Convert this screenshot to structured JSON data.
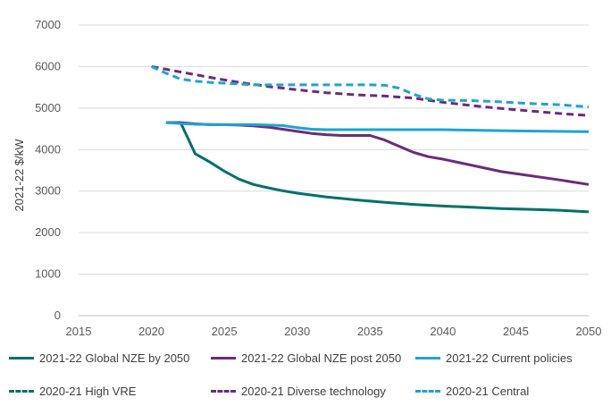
{
  "chart_data": {
    "type": "line",
    "title": "",
    "xlabel": "",
    "ylabel": "2021-22 $/kW",
    "xlim": [
      2015,
      2050
    ],
    "ylim": [
      0,
      7000
    ],
    "x_ticks": [
      2015,
      2020,
      2025,
      2030,
      2035,
      2040,
      2045,
      2050
    ],
    "y_ticks": [
      0,
      1000,
      2000,
      3000,
      4000,
      5000,
      6000,
      7000
    ],
    "grid": "horizontal",
    "legend_position": "bottom",
    "series": [
      {
        "name": "2021-22 Global NZE by 2050",
        "color": "#00706B",
        "style": "solid",
        "x": [
          2021,
          2022,
          2023,
          2024,
          2025,
          2026,
          2027,
          2028,
          2029,
          2030,
          2032,
          2034,
          2036,
          2038,
          2040,
          2042,
          2044,
          2046,
          2048,
          2050
        ],
        "y": [
          4650,
          4650,
          3900,
          3700,
          3480,
          3290,
          3160,
          3080,
          3010,
          2950,
          2860,
          2790,
          2730,
          2680,
          2640,
          2610,
          2580,
          2560,
          2540,
          2500
        ]
      },
      {
        "name": "2021-22 Global NZE post 2050",
        "color": "#6B2C7A",
        "style": "solid",
        "x": [
          2021,
          2022,
          2023,
          2024,
          2025,
          2026,
          2027,
          2028,
          2029,
          2030,
          2031,
          2032,
          2033,
          2034,
          2035,
          2036,
          2037,
          2038,
          2039,
          2040,
          2042,
          2044,
          2046,
          2048,
          2050
        ],
        "y": [
          4650,
          4650,
          4620,
          4600,
          4600,
          4590,
          4570,
          4540,
          4490,
          4440,
          4390,
          4360,
          4340,
          4340,
          4340,
          4230,
          4080,
          3930,
          3830,
          3770,
          3620,
          3470,
          3370,
          3270,
          3160
        ]
      },
      {
        "name": "2021-22 Current policies",
        "color": "#1FA3D1",
        "style": "solid",
        "x": [
          2021,
          2023,
          2025,
          2027,
          2029,
          2030,
          2031,
          2032,
          2035,
          2040,
          2045,
          2050
        ],
        "y": [
          4650,
          4610,
          4600,
          4600,
          4580,
          4530,
          4490,
          4480,
          4480,
          4480,
          4450,
          4430
        ]
      },
      {
        "name": "2020-21 High VRE",
        "color": "#00706B",
        "style": "dashed",
        "x": [],
        "y": []
      },
      {
        "name": "2020-21 Diverse technology",
        "color": "#6B2C7A",
        "style": "dashed",
        "x": [
          2020,
          2022,
          2024,
          2026,
          2028,
          2030,
          2032,
          2034,
          2036,
          2038,
          2040,
          2042,
          2044,
          2046,
          2048,
          2050
        ],
        "y": [
          6000,
          5870,
          5740,
          5620,
          5520,
          5440,
          5370,
          5320,
          5290,
          5240,
          5140,
          5060,
          4990,
          4930,
          4870,
          4820
        ]
      },
      {
        "name": "2020-21 Central",
        "color": "#1FA3D1",
        "style": "dashed",
        "x": [
          2020,
          2021,
          2022,
          2023,
          2024,
          2025,
          2026,
          2027,
          2030,
          2033,
          2035,
          2036,
          2037,
          2038,
          2039,
          2040,
          2042,
          2044,
          2046,
          2048,
          2050
        ],
        "y": [
          6000,
          5840,
          5700,
          5650,
          5620,
          5600,
          5580,
          5560,
          5560,
          5560,
          5560,
          5550,
          5480,
          5330,
          5220,
          5190,
          5180,
          5150,
          5110,
          5080,
          5030
        ]
      }
    ]
  }
}
